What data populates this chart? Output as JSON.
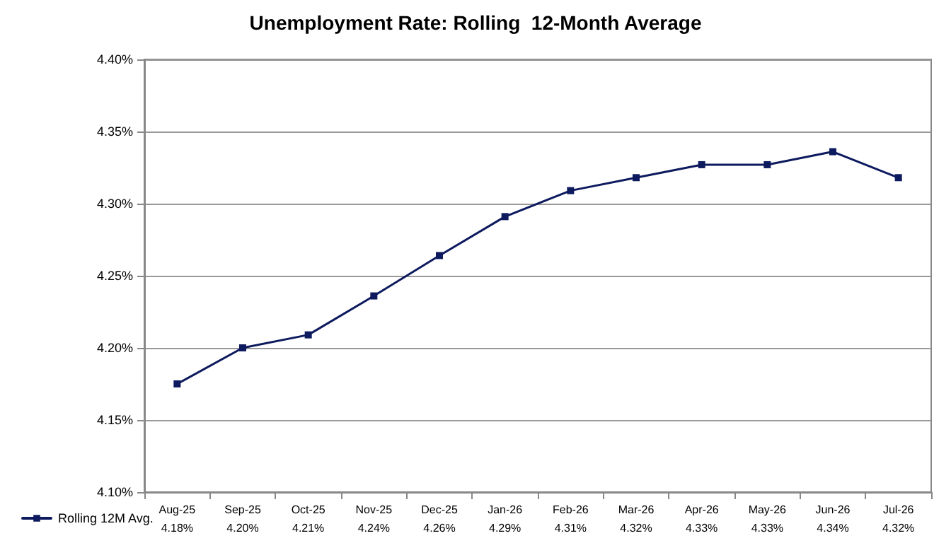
{
  "chart_data": {
    "type": "line",
    "title": "Unemployment Rate: Rolling  12-Month Average",
    "categories": [
      "Aug-25",
      "Sep-25",
      "Oct-25",
      "Nov-25",
      "Dec-25",
      "Jan-26",
      "Feb-26",
      "Mar-26",
      "Apr-26",
      "May-26",
      "Jun-26",
      "Jul-26"
    ],
    "series": [
      {
        "name": "Rolling 12M Avg.",
        "color": "#0d1a5e",
        "values": [
          4.175,
          4.2,
          4.209,
          4.236,
          4.264,
          4.291,
          4.309,
          4.318,
          4.327,
          4.327,
          4.336,
          4.318
        ],
        "value_labels": [
          "4.18%",
          "4.20%",
          "4.21%",
          "4.24%",
          "4.26%",
          "4.29%",
          "4.31%",
          "4.32%",
          "4.33%",
          "4.33%",
          "4.34%",
          "4.32%"
        ]
      }
    ],
    "ylim": [
      4.1,
      4.4
    ],
    "yticks": [
      {
        "value": 4.1,
        "label": "4.10%"
      },
      {
        "value": 4.15,
        "label": "4.15%"
      },
      {
        "value": 4.2,
        "label": "4.20%"
      },
      {
        "value": 4.25,
        "label": "4.25%"
      },
      {
        "value": 4.3,
        "label": "4.30%"
      },
      {
        "value": 4.35,
        "label": "4.35%"
      },
      {
        "value": 4.4,
        "label": "4.40%"
      }
    ],
    "grid": "y",
    "legend": "bottom left",
    "marker": "square",
    "line_style": "solid"
  }
}
